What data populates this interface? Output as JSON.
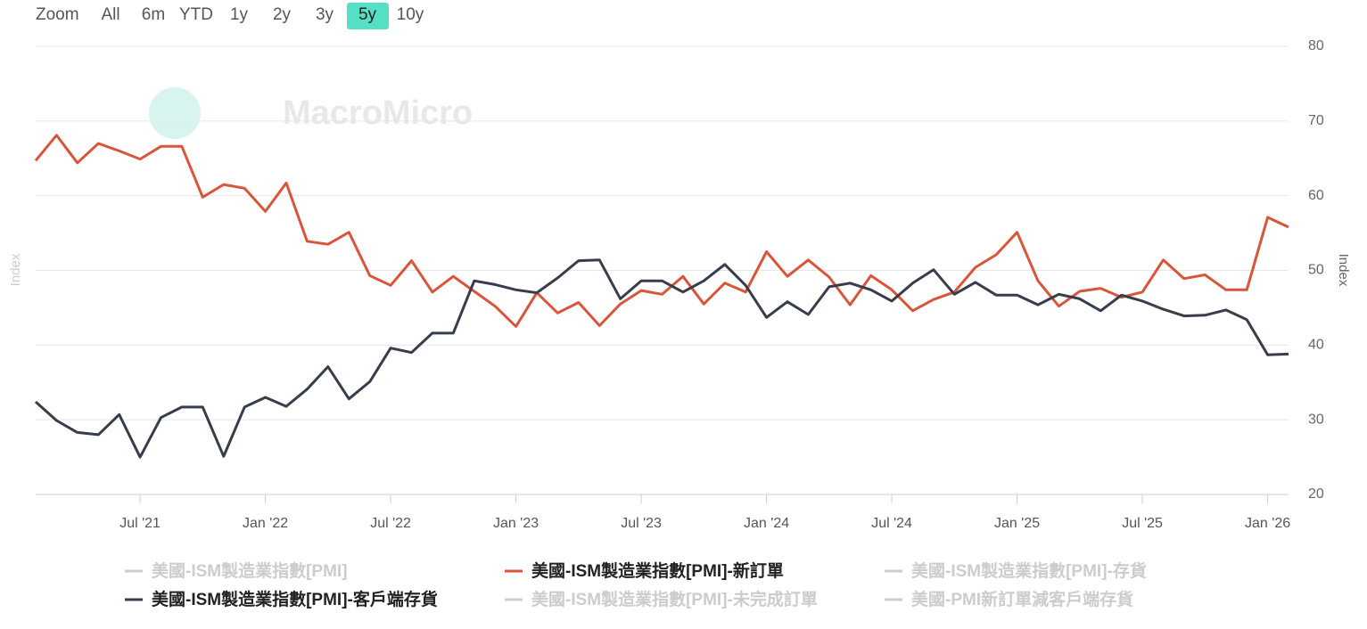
{
  "chart_data": {
    "type": "line",
    "range_selector": {
      "label": "Zoom",
      "buttons": [
        "All",
        "6m",
        "YTD",
        "1y",
        "2y",
        "3y",
        "5y",
        "10y"
      ],
      "selected": 6
    },
    "watermark": "MacroMicro",
    "ylabel": "Index",
    "y2label": "Index",
    "categories": [
      null,
      null,
      null,
      null,
      null,
      "Jul '21",
      null,
      null,
      null,
      null,
      null,
      "Jan '22",
      null,
      null,
      null,
      null,
      null,
      "Jul '22",
      null,
      null,
      null,
      null,
      null,
      "Jan '23",
      null,
      null,
      null,
      null,
      null,
      "Jul '23",
      null,
      null,
      null,
      null,
      null,
      "Jan '24",
      null,
      null,
      null,
      null,
      null,
      "Jul '24",
      null,
      null,
      null,
      null,
      null,
      "Jan '25",
      null,
      null,
      null,
      null,
      null,
      "Jul '25",
      null,
      null,
      null,
      null,
      null,
      "Jan '26",
      null
    ],
    "ylim": [
      20,
      80
    ],
    "yticks": [
      20,
      30,
      40,
      50,
      60,
      70,
      80
    ],
    "grid": true,
    "series": [
      {
        "name": "美國-ISM製造業指數[PMI]",
        "color": "#cccccc",
        "visible": false
      },
      {
        "name": "美國-ISM製造業指數[PMI]-新訂單",
        "color": "#d9553a",
        "visible": true,
        "values": [
          64.7,
          68.1,
          64.4,
          67.0,
          66.0,
          64.9,
          66.6,
          66.6,
          59.8,
          61.5,
          61.0,
          57.9,
          61.7,
          53.9,
          53.5,
          55.1,
          49.3,
          48.0,
          51.3,
          47.1,
          49.2,
          47.2,
          45.2,
          42.5,
          47.0,
          44.3,
          45.7,
          42.6,
          45.5,
          47.3,
          46.8,
          49.2,
          45.5,
          48.3,
          47.1,
          52.5,
          49.2,
          51.4,
          49.1,
          45.4,
          49.3,
          47.4,
          44.6,
          46.1,
          47.1,
          50.4,
          52.1,
          55.1,
          48.6,
          45.2,
          47.2,
          47.6,
          46.4,
          47.1,
          51.4,
          48.9,
          49.4,
          47.4,
          47.4,
          57.1,
          55.8
        ]
      },
      {
        "name": "美國-ISM製造業指數[PMI]-存貨",
        "color": "#cccccc",
        "visible": false
      },
      {
        "name": "美國-ISM製造業指數[PMI]-客戶端存貨",
        "color": "#373d4a",
        "visible": true,
        "values": [
          32.4,
          29.9,
          28.3,
          28.0,
          30.7,
          25.0,
          30.3,
          31.7,
          31.7,
          25.1,
          31.7,
          33.0,
          31.8,
          34.1,
          37.1,
          32.8,
          35.1,
          39.6,
          39.0,
          41.6,
          41.6,
          48.6,
          48.1,
          47.4,
          47.0,
          49.0,
          51.3,
          51.4,
          46.2,
          48.6,
          48.6,
          47.1,
          48.6,
          50.8,
          48.0,
          43.7,
          45.8,
          44.1,
          47.8,
          48.3,
          47.4,
          45.9,
          48.3,
          50.1,
          46.8,
          48.4,
          46.7,
          46.7,
          45.4,
          46.8,
          46.2,
          44.6,
          46.7,
          45.9,
          44.8,
          43.9,
          44.0,
          44.7,
          43.4,
          38.7,
          38.8
        ]
      },
      {
        "name": "美國-ISM製造業指數[PMI]-未完成訂單",
        "color": "#cccccc",
        "visible": false
      },
      {
        "name": "美國-PMI新訂單減客戶端存貨",
        "color": "#cccccc",
        "visible": false
      }
    ]
  }
}
